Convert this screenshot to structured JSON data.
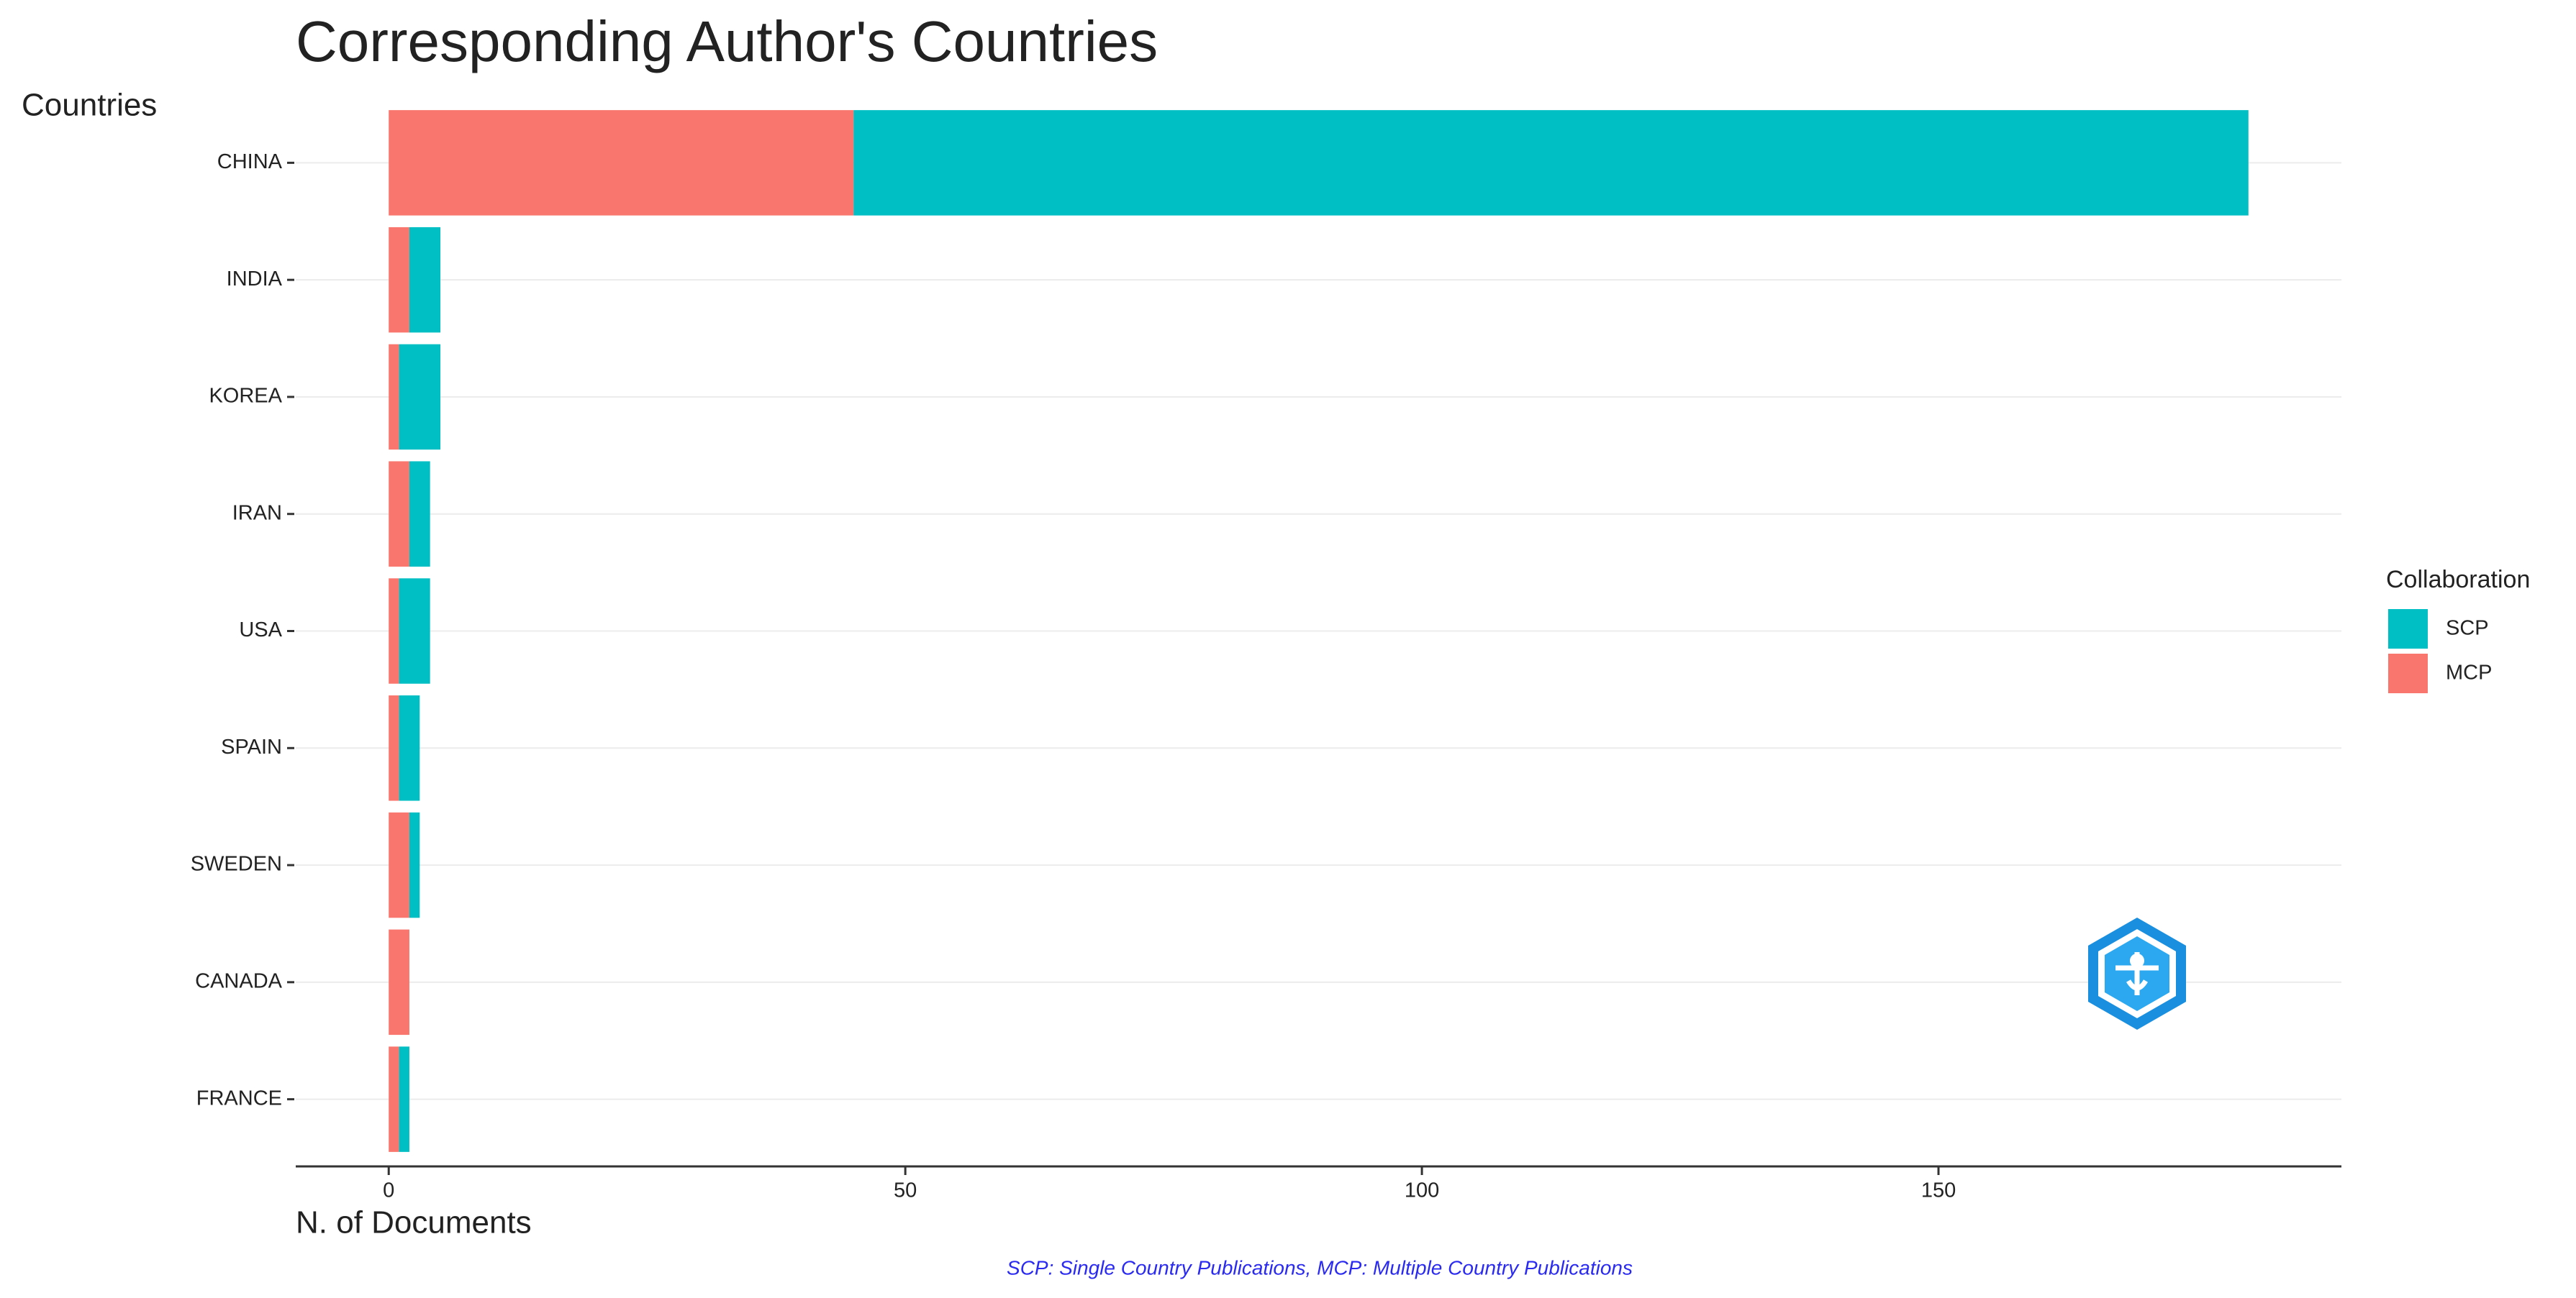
{
  "chart_data": {
    "type": "stacked-barh",
    "title": "Corresponding Author's Countries",
    "y_label": "Countries",
    "x_label": "N. of Documents",
    "caption": "SCP: Single Country Publications, MCP: Multiple Country Publications",
    "legend_title": "Collaboration",
    "legend": "right",
    "categories": [
      "CHINA",
      "INDIA",
      "KOREA",
      "IRAN",
      "USA",
      "SPAIN",
      "SWEDEN",
      "CANADA",
      "FRANCE"
    ],
    "series": [
      {
        "name": "SCP",
        "color": "#00bfc4",
        "values": [
          135,
          3,
          4,
          2,
          3,
          2,
          1,
          0,
          1
        ]
      },
      {
        "name": "MCP",
        "color": "#f8766d",
        "values": [
          45,
          2,
          1,
          2,
          1,
          1,
          2,
          2,
          1
        ]
      }
    ],
    "xlim": [
      -9,
      189
    ],
    "xticks": [
      0,
      50,
      100,
      150
    ]
  }
}
